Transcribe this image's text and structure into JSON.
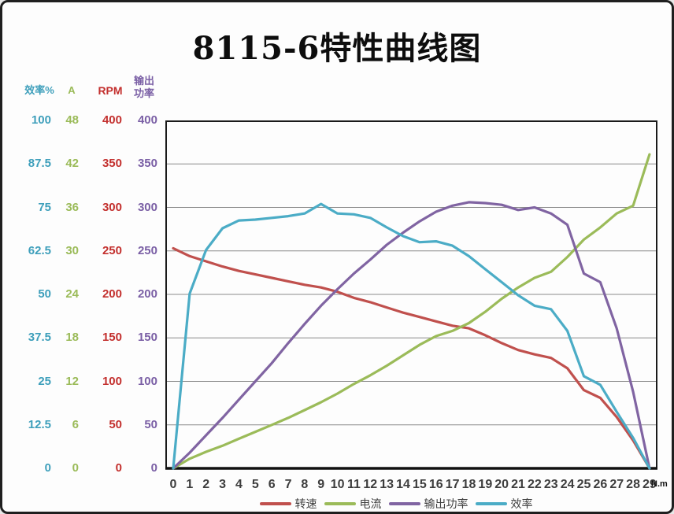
{
  "page": {
    "background": "#fdfdfd",
    "frame_border_color": "#1f1f1f"
  },
  "chart_data": {
    "type": "line",
    "title": "8115-6特性曲线图",
    "x_label_unit": "N.m",
    "x_ticks": [
      0,
      1,
      2,
      3,
      4,
      5,
      6,
      7,
      8,
      9,
      10,
      11,
      12,
      13,
      14,
      15,
      16,
      17,
      18,
      19,
      20,
      21,
      22,
      23,
      24,
      25,
      26,
      27,
      28,
      29
    ],
    "grid": {
      "min": 0,
      "max": 400,
      "step": 50,
      "horizontal_gridlines": true,
      "vertical_gridlines": false,
      "gridline_color": "#8a8a8a"
    },
    "axes": [
      {
        "id": "efficiency",
        "label": "效率%",
        "color": "#3E9FBB",
        "ticks": [
          100,
          87.5,
          75,
          62.5,
          50,
          37.5,
          25,
          12.5,
          0
        ]
      },
      {
        "id": "current",
        "label": "A",
        "color": "#9BBB59",
        "ticks": [
          48,
          42,
          36,
          30,
          24,
          18,
          12,
          6,
          0
        ]
      },
      {
        "id": "rpm",
        "label": "RPM",
        "color": "#C3302E",
        "ticks": [
          400,
          350,
          300,
          250,
          200,
          150,
          100,
          50,
          0
        ]
      },
      {
        "id": "power",
        "label": "输出功率",
        "color": "#7A5FA5",
        "ticks": [
          400,
          350,
          300,
          250,
          200,
          150,
          100,
          50,
          0
        ]
      }
    ],
    "values_note": "series values are plotted on the shared 0-400 grid scale; 效率 native % = value/4, 电流 native A = value*48/400",
    "series": [
      {
        "id": "speed",
        "name": "转速",
        "axis": "rpm",
        "color": "#C0504D",
        "values": [
          253,
          244,
          238,
          232,
          227,
          223,
          219,
          215,
          211,
          208,
          203,
          196,
          191,
          185,
          179,
          174,
          169,
          164,
          161,
          153,
          144,
          136,
          131,
          127,
          115,
          90,
          81,
          59,
          32,
          0
        ]
      },
      {
        "id": "current",
        "name": "电流",
        "axis": "current",
        "color": "#9BBB59",
        "values": [
          0,
          11,
          19,
          26,
          34,
          42,
          50,
          58,
          67,
          76,
          86,
          97,
          107,
          118,
          130,
          142,
          152,
          158,
          167,
          180,
          195,
          208,
          219,
          226,
          243,
          263,
          277,
          293,
          302,
          361
        ]
      },
      {
        "id": "power",
        "name": "输出功率",
        "axis": "power",
        "color": "#8064A2",
        "values": [
          0,
          18,
          38,
          58,
          79,
          100,
          121,
          144,
          166,
          187,
          206,
          224,
          240,
          257,
          271,
          284,
          295,
          302,
          306,
          305,
          303,
          297,
          300,
          293,
          280,
          224,
          214,
          161,
          88,
          0
        ]
      },
      {
        "id": "efficiency",
        "name": "效率",
        "axis": "efficiency",
        "color": "#4BACC6",
        "values": [
          0,
          201,
          251,
          276,
          285,
          286,
          288,
          290,
          293,
          304,
          293,
          292,
          288,
          277,
          267,
          260,
          261,
          256,
          244,
          229,
          214,
          199,
          187,
          183,
          158,
          106,
          96,
          65,
          35,
          0
        ]
      }
    ]
  }
}
